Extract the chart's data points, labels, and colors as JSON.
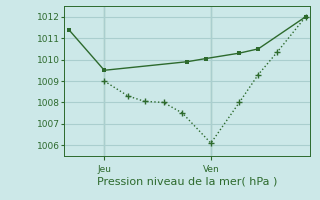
{
  "line1_x": [
    0,
    1.5,
    5.0,
    5.8,
    7.2,
    8.0,
    10.0
  ],
  "line1_y": [
    1011.4,
    1009.5,
    1009.9,
    1010.05,
    1010.3,
    1010.5,
    1012.0
  ],
  "line2_x": [
    1.5,
    2.5,
    3.2,
    4.0,
    4.8,
    6.0,
    7.2,
    8.0,
    8.8,
    10.0
  ],
  "line2_y": [
    1009.0,
    1008.3,
    1008.05,
    1008.0,
    1007.5,
    1006.1,
    1008.0,
    1009.3,
    1010.35,
    1012.0
  ],
  "line_color": "#2d6a2d",
  "bg_color": "#cce8e8",
  "grid_color": "#aacece",
  "xlabel": "Pression niveau de la mer( hPa )",
  "ylim": [
    1005.5,
    1012.5
  ],
  "xlim": [
    -0.2,
    10.2
  ],
  "yticks": [
    1006,
    1007,
    1008,
    1009,
    1010,
    1011,
    1012
  ],
  "xtick_positions": [
    1.5,
    6.0
  ],
  "xtick_labels": [
    "Jeu",
    "Ven"
  ],
  "xlabel_fontsize": 8,
  "tick_fontsize": 6.5
}
